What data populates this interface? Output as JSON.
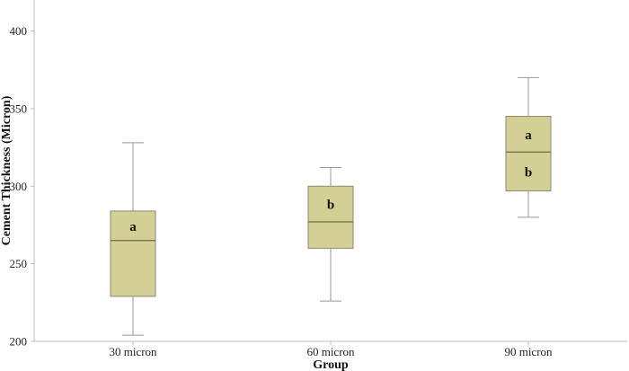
{
  "chart_data": {
    "type": "box",
    "xlabel": "Group",
    "ylabel": "Cement Thickness (Micron)",
    "ylim": [
      200,
      420
    ],
    "yticks": [
      200,
      250,
      300,
      350,
      400
    ],
    "grid": false,
    "box_color": "#d3cf95",
    "box_edge_color": "#8b8a70",
    "median_color": "#6b6a4a",
    "whisker_color": "#999999",
    "groups": [
      {
        "label": "30 micron",
        "min": 204,
        "q1": 229,
        "median": 265,
        "q3": 284,
        "max": 328,
        "letters": [
          "a"
        ]
      },
      {
        "label": "60 micron",
        "min": 226,
        "q1": 260,
        "median": 277,
        "q3": 300,
        "max": 312,
        "letters": [
          "b"
        ]
      },
      {
        "label": "90 micron",
        "min": 280,
        "q1": 297,
        "median": 322,
        "q3": 345,
        "max": 370,
        "letters": [
          "a",
          "b"
        ]
      }
    ]
  }
}
